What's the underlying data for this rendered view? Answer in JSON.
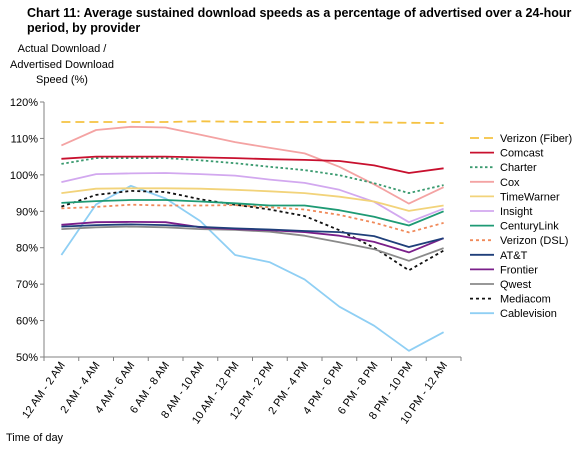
{
  "chart_data": {
    "type": "line",
    "title": "Chart 11: Average sustained download speeds as a percentage of advertised over a 24-hour period, by provider",
    "ylabel": "Actual Download / Advertised Download Speed (%)",
    "xlabel": "Time of day",
    "ylim": [
      50,
      120
    ],
    "yticks": [
      "50%",
      "60%",
      "70%",
      "80%",
      "90%",
      "100%",
      "110%",
      "120%"
    ],
    "grid": false,
    "legend": "right",
    "categories": [
      "12 AM - 2 AM",
      "2 AM - 4 AM",
      "4 AM - 6 AM",
      "6 AM - 8 AM",
      "8 AM - 10 AM",
      "10 AM - 12 PM",
      "12 PM - 2 PM",
      "2 PM - 4 PM",
      "4 PM - 6 PM",
      "6 PM - 8 PM",
      "8 PM - 10 PM",
      "10 PM - 12 AM"
    ],
    "series": [
      {
        "name": "Verizon (Fiber)",
        "color": "#f5c242",
        "dash": "9,5",
        "values": [
          114.5,
          114.5,
          114.5,
          114.5,
          114.7,
          114.6,
          114.5,
          114.5,
          114.5,
          114.4,
          114.3,
          114.2
        ]
      },
      {
        "name": "Comcast",
        "color": "#c8102e",
        "dash": "",
        "values": [
          104.4,
          105.0,
          105.0,
          105.0,
          104.8,
          104.6,
          104.3,
          104.1,
          103.8,
          102.6,
          100.5,
          101.8
        ]
      },
      {
        "name": "Charter",
        "color": "#3a9a6f",
        "dash": "2.5,2.5",
        "values": [
          103.0,
          104.6,
          104.6,
          104.6,
          104.0,
          103.2,
          102.2,
          101.3,
          99.9,
          97.7,
          95.0,
          97.2
        ]
      },
      {
        "name": "Cox",
        "color": "#f4a3a3",
        "dash": "",
        "values": [
          108.1,
          112.3,
          113.2,
          113.0,
          111.0,
          109.0,
          107.4,
          105.9,
          102.2,
          97.4,
          92.1,
          96.6
        ]
      },
      {
        "name": "TimeWarner",
        "color": "#f2d37a",
        "dash": "",
        "values": [
          95.0,
          96.2,
          96.3,
          96.3,
          96.2,
          95.9,
          95.5,
          95.0,
          94.0,
          92.7,
          90.1,
          91.6
        ]
      },
      {
        "name": "Insight",
        "color": "#d2a8ef",
        "dash": "",
        "values": [
          98.0,
          100.2,
          100.4,
          100.5,
          100.2,
          99.8,
          98.7,
          97.8,
          95.9,
          92.6,
          87.0,
          90.7
        ]
      },
      {
        "name": "CenturyLink",
        "color": "#1e9a74",
        "dash": "",
        "values": [
          92.3,
          92.8,
          93.1,
          93.1,
          92.7,
          92.2,
          91.6,
          91.6,
          90.3,
          88.5,
          86.1,
          90.0
        ]
      },
      {
        "name": "Verizon (DSL)",
        "color": "#f08a5a",
        "dash": "3,3",
        "values": [
          90.8,
          91.2,
          91.8,
          91.6,
          91.6,
          91.7,
          91.1,
          90.5,
          89.0,
          86.9,
          84.2,
          86.8
        ]
      },
      {
        "name": "AT&T",
        "color": "#1f3f7a",
        "dash": "",
        "values": [
          85.8,
          86.2,
          86.4,
          86.2,
          85.7,
          85.3,
          85.0,
          84.6,
          84.3,
          83.2,
          80.2,
          82.6
        ]
      },
      {
        "name": "Frontier",
        "color": "#7a1f8a",
        "dash": "",
        "values": [
          86.3,
          87.0,
          87.1,
          87.0,
          85.6,
          85.1,
          84.8,
          84.3,
          83.3,
          81.6,
          78.7,
          82.6
        ]
      },
      {
        "name": "Qwest",
        "color": "#8a8a8a",
        "dash": "",
        "values": [
          85.1,
          85.6,
          85.8,
          85.6,
          85.1,
          84.9,
          84.4,
          83.3,
          81.5,
          79.6,
          76.4,
          79.9
        ]
      },
      {
        "name": "Mediacom",
        "color": "#111111",
        "dash": "3,3",
        "values": [
          91.3,
          94.5,
          95.6,
          95.3,
          93.3,
          91.8,
          90.5,
          88.7,
          84.8,
          80.0,
          73.8,
          79.2
        ]
      },
      {
        "name": "Cablevision",
        "color": "#8fcff4",
        "dash": "",
        "values": [
          78.0,
          91.9,
          97.0,
          93.5,
          87.3,
          78.0,
          76.0,
          71.3,
          63.8,
          58.6,
          51.7,
          56.8
        ]
      }
    ]
  }
}
